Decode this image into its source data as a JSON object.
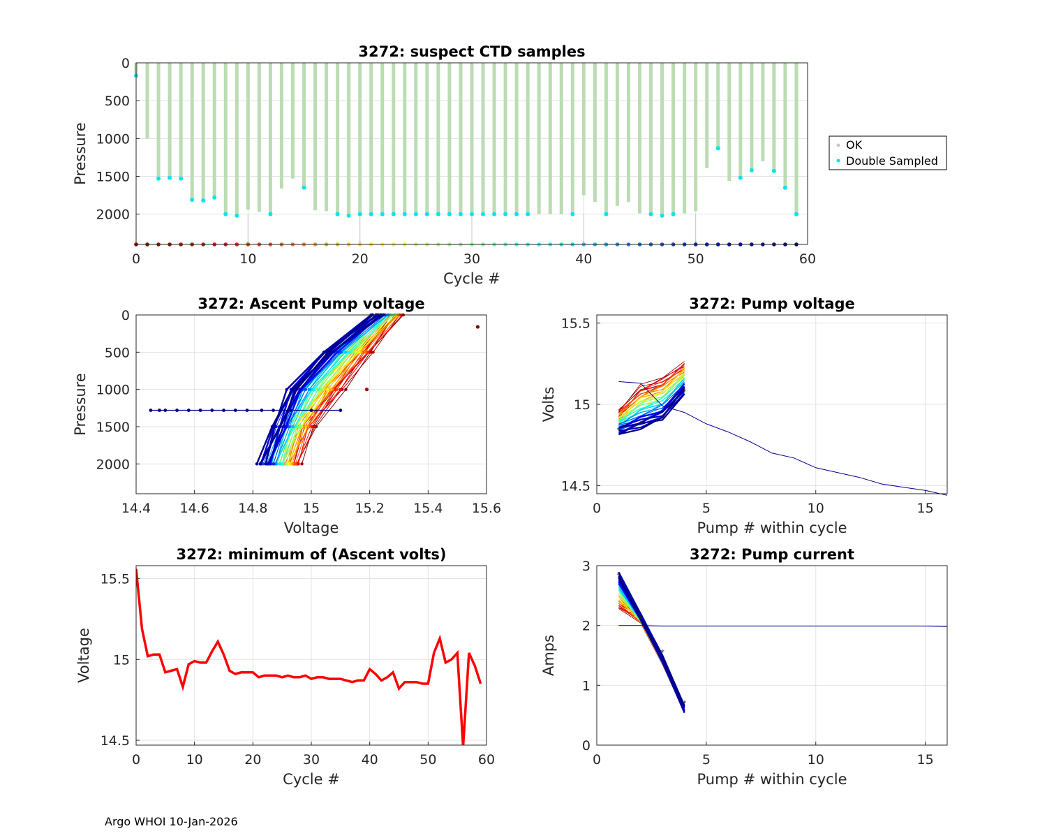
{
  "footer": "Argo WHOI 10-Jan-2026",
  "chart_data": [
    {
      "id": "suspect",
      "type": "scatter",
      "title": "3272: suspect CTD samples",
      "xlabel": "Cycle #",
      "ylabel": "Pressure",
      "xlim": [
        0,
        60
      ],
      "ylim": [
        0,
        2400
      ],
      "y_reversed": true,
      "xticks": [
        "0",
        "10",
        "20",
        "30",
        "40",
        "50",
        "60"
      ],
      "yticks": [
        "0",
        "500",
        "1000",
        "1500",
        "2000"
      ],
      "legend": [
        "OK",
        "Double Sampled"
      ],
      "legend_colors": [
        "#c8c8c8",
        "#00e5ee"
      ],
      "ok_color": "#bcdcb4",
      "double_sampled_color": "#00e5ee",
      "cycles": [
        0,
        1,
        2,
        3,
        4,
        5,
        6,
        7,
        8,
        9,
        10,
        11,
        12,
        13,
        14,
        15,
        16,
        17,
        18,
        19,
        20,
        21,
        22,
        23,
        24,
        25,
        26,
        27,
        28,
        29,
        30,
        31,
        32,
        33,
        34,
        35,
        36,
        37,
        38,
        39,
        40,
        41,
        42,
        43,
        44,
        45,
        46,
        47,
        48,
        49,
        50,
        51,
        52,
        53,
        54,
        55,
        56,
        57,
        58,
        59
      ],
      "profile_max_pressure": [
        160,
        1000,
        1530,
        1520,
        1530,
        1810,
        1820,
        1780,
        2000,
        2020,
        1940,
        1970,
        2000,
        1660,
        1530,
        1650,
        1950,
        1960,
        2000,
        2020,
        2000,
        2000,
        2000,
        2000,
        2000,
        2000,
        2000,
        2000,
        2000,
        2000,
        2000,
        2000,
        2000,
        2000,
        2000,
        2000,
        2000,
        2000,
        2000,
        2000,
        1750,
        1840,
        2000,
        1890,
        1840,
        1990,
        2000,
        2020,
        2000,
        1990,
        1960,
        1390,
        1130,
        1560,
        1520,
        1420,
        1300,
        1430,
        1650,
        2000
      ],
      "double_sampled_pressure": [
        170,
        null,
        1530,
        1520,
        1530,
        1810,
        1820,
        1780,
        2000,
        2020,
        null,
        null,
        2000,
        null,
        null,
        1650,
        null,
        null,
        2000,
        2020,
        2000,
        2000,
        2000,
        2000,
        2000,
        2000,
        2000,
        2000,
        2000,
        2000,
        2000,
        2000,
        2000,
        2000,
        2000,
        2000,
        null,
        null,
        null,
        2000,
        null,
        null,
        2000,
        null,
        null,
        null,
        2000,
        2020,
        2000,
        null,
        null,
        null,
        1130,
        null,
        1520,
        1420,
        null,
        1430,
        1650,
        2000
      ],
      "bottom_marker_pressure": 2400
    },
    {
      "id": "ascent",
      "type": "line",
      "title": "3272: Ascent Pump voltage",
      "xlabel": "Voltage",
      "ylabel": "Pressure",
      "xlim": [
        14.4,
        15.6
      ],
      "ylim": [
        0,
        2400
      ],
      "y_reversed": true,
      "xticks": [
        "14.4",
        "14.6",
        "14.8",
        "15",
        "15.2",
        "15.4",
        "15.6"
      ],
      "yticks": [
        "0",
        "500",
        "1000",
        "1500",
        "2000"
      ],
      "colormap": "jet",
      "series_summary": "one line per cycle 0-59, colored early=dark red to late=dark blue",
      "pressure_levels": [
        2000,
        1500,
        1000,
        500,
        0
      ],
      "early_cycle_voltages": [
        14.95,
        15.0,
        15.1,
        15.2,
        15.3
      ],
      "late_cycle_voltages": [
        14.83,
        14.88,
        14.93,
        15.05,
        15.22
      ],
      "outliers": [
        {
          "cycle": 0,
          "voltage": 15.57,
          "pressure": 160
        },
        {
          "cycle": 2,
          "voltage": 15.19,
          "pressure": 1000
        }
      ],
      "long_park_line": {
        "pressure": 1280,
        "voltages": [
          14.45,
          14.48,
          14.5,
          14.54,
          14.58,
          14.62,
          14.66,
          14.7,
          14.74,
          14.78,
          14.83,
          14.87,
          14.93,
          15.0,
          15.1
        ]
      }
    },
    {
      "id": "pumpv",
      "type": "line",
      "title": "3272: Pump voltage",
      "xlabel": "Pump # within cycle",
      "ylabel": "Volts",
      "xlim": [
        0,
        16
      ],
      "ylim": [
        14.45,
        15.55
      ],
      "xticks": [
        "0",
        "5",
        "10",
        "15"
      ],
      "yticks": [
        "14.5",
        "15",
        "15.5"
      ],
      "colormap": "jet",
      "early_cycle_volts": [
        14.95,
        15.1,
        15.15,
        15.25
      ],
      "late_cycle_volts": [
        14.83,
        14.87,
        14.92,
        15.08
      ],
      "long_cycle": {
        "pump": [
          1,
          2,
          3,
          4,
          5,
          6,
          7,
          8,
          9,
          10,
          11,
          12,
          13,
          14,
          15,
          16
        ],
        "volts": [
          15.14,
          15.13,
          14.99,
          14.95,
          14.88,
          14.83,
          14.77,
          14.7,
          14.67,
          14.61,
          14.58,
          14.55,
          14.51,
          14.49,
          14.47,
          14.44
        ]
      }
    },
    {
      "id": "minv",
      "type": "line",
      "title": "3272: minimum of (Ascent volts)",
      "xlabel": "Cycle #",
      "ylabel": "Voltage",
      "xlim": [
        0,
        60
      ],
      "ylim": [
        14.47,
        15.58
      ],
      "xticks": [
        "0",
        "10",
        "20",
        "30",
        "40",
        "50",
        "60"
      ],
      "yticks": [
        "14.5",
        "15",
        "15.5"
      ],
      "color": "#ff0000",
      "x": [
        0,
        1,
        2,
        3,
        4,
        5,
        6,
        7,
        8,
        9,
        10,
        11,
        12,
        13,
        14,
        15,
        16,
        17,
        18,
        19,
        20,
        21,
        22,
        23,
        24,
        25,
        26,
        27,
        28,
        29,
        30,
        31,
        32,
        33,
        34,
        35,
        36,
        37,
        38,
        39,
        40,
        41,
        42,
        43,
        44,
        45,
        46,
        47,
        48,
        49,
        50,
        51,
        52,
        53,
        54,
        55,
        56,
        57,
        58,
        59
      ],
      "y": [
        15.56,
        15.19,
        15.02,
        15.03,
        15.03,
        14.92,
        14.93,
        14.94,
        14.83,
        14.97,
        14.99,
        14.98,
        14.98,
        15.05,
        15.11,
        15.03,
        14.93,
        14.91,
        14.92,
        14.92,
        14.92,
        14.89,
        14.9,
        14.9,
        14.9,
        14.89,
        14.9,
        14.89,
        14.89,
        14.9,
        14.88,
        14.89,
        14.89,
        14.88,
        14.88,
        14.88,
        14.87,
        14.86,
        14.87,
        14.87,
        14.94,
        14.91,
        14.87,
        14.89,
        14.92,
        14.82,
        14.86,
        14.86,
        14.86,
        14.85,
        14.85,
        15.04,
        15.13,
        14.98,
        15.0,
        15.04,
        14.46,
        15.04,
        14.96,
        14.85
      ]
    },
    {
      "id": "pumpa",
      "type": "line",
      "title": "3272: Pump current",
      "xlabel": "Pump # within cycle",
      "ylabel": "Amps",
      "xlim": [
        0,
        16
      ],
      "ylim": [
        0,
        3
      ],
      "xticks": [
        "0",
        "5",
        "10",
        "15"
      ],
      "yticks": [
        "0",
        "1",
        "2",
        "3"
      ],
      "colormap": "jet",
      "early_cycle_amps": [
        2.3,
        2.1,
        1.4,
        0.6
      ],
      "late_cycle_amps": [
        2.85,
        2.15,
        1.45,
        0.6
      ],
      "long_cycle": {
        "pump": [
          1,
          2,
          3,
          4,
          5,
          6,
          7,
          8,
          9,
          10,
          11,
          12,
          13,
          14,
          15,
          16
        ],
        "amps": [
          2.0,
          2.0,
          1.99,
          1.99,
          1.99,
          1.99,
          1.99,
          1.99,
          1.99,
          1.99,
          1.99,
          1.99,
          1.99,
          1.99,
          1.99,
          1.98
        ]
      }
    }
  ]
}
